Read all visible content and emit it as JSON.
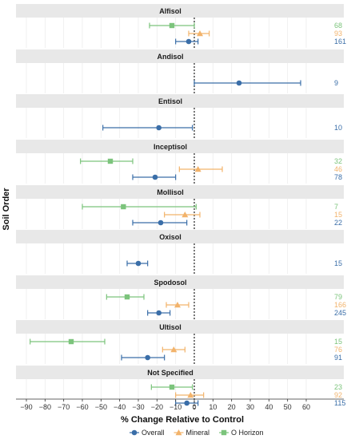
{
  "chart_data": {
    "type": "forest",
    "xlabel": "% Change Relative to Control",
    "ylabel": "Soil Order",
    "xlim": [
      -95,
      65
    ],
    "xticks": [
      -90,
      -80,
      -70,
      -60,
      -50,
      -40,
      -30,
      -20,
      -10,
      0,
      10,
      20,
      30,
      40,
      50,
      60
    ],
    "grid": true,
    "legend_position": "bottom",
    "series": [
      {
        "key": "overall",
        "name": "Overall",
        "color": "#3a6ea8",
        "marker": "circle"
      },
      {
        "key": "mineral",
        "name": "Mineral",
        "color": "#f2b36b",
        "marker": "triangle"
      },
      {
        "key": "ohorizon",
        "name": "O Horizon",
        "color": "#7cc47c",
        "marker": "square"
      }
    ],
    "panels": [
      {
        "label": "Alfisol",
        "rows": [
          {
            "series": "ohorizon",
            "mean": -12,
            "lo": -24,
            "hi": 0,
            "n": "68"
          },
          {
            "series": "mineral",
            "mean": 3,
            "lo": -3,
            "hi": 8,
            "n": "93"
          },
          {
            "series": "overall",
            "mean": -3,
            "lo": -10,
            "hi": 2,
            "n": "161"
          }
        ]
      },
      {
        "label": "Andisol",
        "rows": [
          {
            "series": "overall",
            "mean": 24,
            "lo": 0,
            "hi": 57,
            "n": "9"
          }
        ]
      },
      {
        "label": "Entisol",
        "rows": [
          {
            "series": "overall",
            "mean": -19,
            "lo": -49,
            "hi": -1,
            "n": "10"
          }
        ]
      },
      {
        "label": "Inceptisol",
        "rows": [
          {
            "series": "ohorizon",
            "mean": -45,
            "lo": -61,
            "hi": -33,
            "n": "32"
          },
          {
            "series": "mineral",
            "mean": 2,
            "lo": -8,
            "hi": 15,
            "n": "46"
          },
          {
            "series": "overall",
            "mean": -21,
            "lo": -33,
            "hi": -10,
            "n": "78"
          }
        ]
      },
      {
        "label": "Mollisol",
        "rows": [
          {
            "series": "ohorizon",
            "mean": -38,
            "lo": -60,
            "hi": 1,
            "n": "7"
          },
          {
            "series": "mineral",
            "mean": -5,
            "lo": -16,
            "hi": 3,
            "n": "15"
          },
          {
            "series": "overall",
            "mean": -18,
            "lo": -33,
            "hi": -4,
            "n": "22"
          }
        ]
      },
      {
        "label": "Oxisol",
        "rows": [
          {
            "series": "overall",
            "mean": -30,
            "lo": -36,
            "hi": -25,
            "n": "15"
          }
        ]
      },
      {
        "label": "Spodosol",
        "rows": [
          {
            "series": "ohorizon",
            "mean": -36,
            "lo": -47,
            "hi": -27,
            "n": "79"
          },
          {
            "series": "mineral",
            "mean": -9,
            "lo": -15,
            "hi": -3,
            "n": "166"
          },
          {
            "series": "overall",
            "mean": -19,
            "lo": -25,
            "hi": -13,
            "n": "245"
          }
        ]
      },
      {
        "label": "Ultisol",
        "rows": [
          {
            "series": "ohorizon",
            "mean": -66,
            "lo": -88,
            "hi": -48,
            "n": "15"
          },
          {
            "series": "mineral",
            "mean": -11,
            "lo": -17,
            "hi": -5,
            "n": "76"
          },
          {
            "series": "overall",
            "mean": -25,
            "lo": -39,
            "hi": -16,
            "n": "91"
          }
        ]
      },
      {
        "label": "Not Specified",
        "rows": [
          {
            "series": "ohorizon",
            "mean": -12,
            "lo": -23,
            "hi": -1,
            "n": "23"
          },
          {
            "series": "mineral",
            "mean": -2,
            "lo": -10,
            "hi": 5,
            "n": "92"
          },
          {
            "series": "overall",
            "mean": -4,
            "lo": -10,
            "hi": 2,
            "n": "115"
          }
        ]
      }
    ]
  }
}
